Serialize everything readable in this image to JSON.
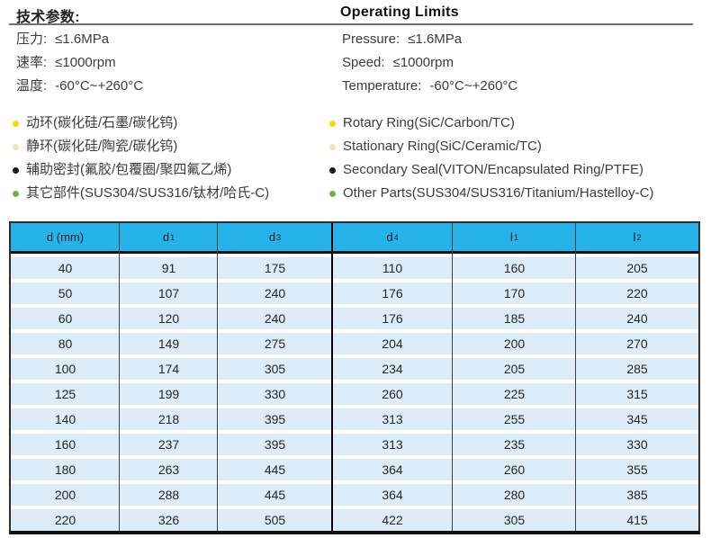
{
  "tech_params": {
    "title_zh": "技术参数:",
    "title_en": "Operating Limits",
    "zh": [
      {
        "label": "压力:",
        "value": "≤1.6MPa"
      },
      {
        "label": "速率:",
        "value": "≤1000rpm"
      },
      {
        "label": "温度:",
        "value": "-60°C~+260°C"
      }
    ],
    "en": [
      {
        "label": "Pressure:",
        "value": "≤1.6MPa"
      },
      {
        "label": "Speed:",
        "value": "≤1000rpm"
      },
      {
        "label": "Temperature:",
        "value": "-60°C~+260°C"
      }
    ]
  },
  "materials": [
    {
      "zh": "动环(碳化硅/石墨/碳化钨)",
      "en": "Rotary Ring(SiC/Carbon/TC)",
      "bullet": "#F5DB00"
    },
    {
      "zh": "静环(碳化硅/陶瓷/碳化钨)",
      "en": "Stationary Ring(SiC/Ceramic/TC)",
      "bullet": "#EFEAAB"
    },
    {
      "zh": "辅助密封(氟胶/包覆圈/聚四氟乙烯)",
      "en": "Secondary Seal(VITON/Encapsulated Ring/PTFE)",
      "bullet": "#1A1A1A"
    },
    {
      "zh": "其它部件(SUS304/SUS316/钛材/哈氏-C)",
      "en": "Other Parts(SUS304/SUS316/Titanium/Hastelloy-C)",
      "bullet": "#71B43C"
    }
  ],
  "dimension_table": {
    "header_bg": "#26B3E9",
    "row_bg": "#DCEDF9",
    "columns": [
      {
        "label": "d (mm)",
        "sub": ""
      },
      {
        "label": "d",
        "sub": "1"
      },
      {
        "label": "d",
        "sub": "3"
      },
      {
        "label": "d",
        "sub": "4"
      },
      {
        "label": "l",
        "sub": "1"
      },
      {
        "label": "l",
        "sub": "2"
      }
    ],
    "rows": [
      [
        "40",
        "91",
        "175",
        "110",
        "160",
        "205"
      ],
      [
        "50",
        "107",
        "240",
        "176",
        "170",
        "220"
      ],
      [
        "60",
        "120",
        "240",
        "176",
        "185",
        "240"
      ],
      [
        "80",
        "149",
        "275",
        "204",
        "200",
        "270"
      ],
      [
        "100",
        "174",
        "305",
        "234",
        "205",
        "285"
      ],
      [
        "125",
        "199",
        "330",
        "260",
        "225",
        "315"
      ],
      [
        "140",
        "218",
        "395",
        "313",
        "255",
        "345"
      ],
      [
        "160",
        "237",
        "395",
        "313",
        "235",
        "330"
      ],
      [
        "180",
        "263",
        "445",
        "364",
        "260",
        "355"
      ],
      [
        "200",
        "288",
        "445",
        "364",
        "280",
        "385"
      ],
      [
        "220",
        "326",
        "505",
        "422",
        "305",
        "415"
      ]
    ]
  }
}
